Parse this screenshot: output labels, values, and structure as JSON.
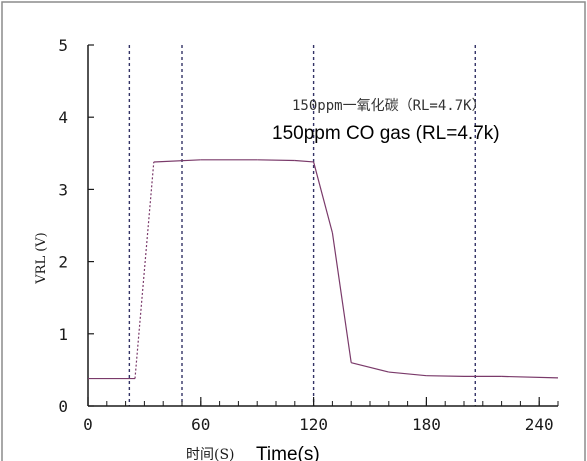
{
  "chart_data": {
    "type": "line",
    "title_cn": "150ppm一氧化碳（RL=4.7K）",
    "title_en": "150ppm CO gas (RL=4.7k)",
    "ylabel": "VRL (V)",
    "xlabel_cn": "时间(S)",
    "xlabel_en": "Time(s)",
    "xlim": [
      0,
      250
    ],
    "ylim": [
      0,
      5
    ],
    "x_ticks": [
      0,
      60,
      120,
      180,
      240
    ],
    "y_ticks": [
      0,
      1,
      2,
      3,
      4,
      5
    ],
    "vertical_markers": [
      22,
      50,
      120,
      206
    ],
    "series": [
      {
        "values": [
          {
            "x": 0,
            "y": 0.38
          },
          {
            "x": 25,
            "y": 0.38
          },
          {
            "x": 35,
            "y": 3.38
          },
          {
            "x": 60,
            "y": 3.41
          },
          {
            "x": 90,
            "y": 3.41
          },
          {
            "x": 110,
            "y": 3.4
          },
          {
            "x": 120,
            "y": 3.38
          },
          {
            "x": 130,
            "y": 2.4
          },
          {
            "x": 140,
            "y": 0.6
          },
          {
            "x": 160,
            "y": 0.47
          },
          {
            "x": 180,
            "y": 0.42
          },
          {
            "x": 200,
            "y": 0.41
          },
          {
            "x": 220,
            "y": 0.41
          },
          {
            "x": 250,
            "y": 0.39
          }
        ]
      }
    ],
    "colors": {
      "line": "#7a3a6a",
      "markers": "#333366"
    },
    "grid": false
  }
}
